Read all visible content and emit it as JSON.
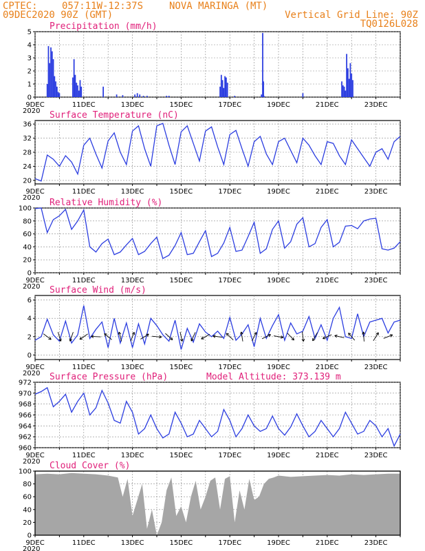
{
  "header": {
    "line1_left": "CPTEC:",
    "line1_coords": "057:11W-12:37S",
    "line1_location": "NOVA MARINGA (MT)",
    "line2_left": "09DEC2020 90Z (GMT)",
    "line2_right": "Vertical Grid Line: 90Z",
    "line3_right": "TQ0126L028"
  },
  "colors": {
    "header": "#e8801a",
    "title": "#e0207a",
    "line": "#2b3de0",
    "bar": "#2b3de0",
    "cloud": "#a6a6a6"
  },
  "x_axis": {
    "tick_labels": [
      "9DEC",
      "11DEC",
      "13DEC",
      "15DEC",
      "17DEC",
      "19DEC",
      "21DEC",
      "23DEC"
    ],
    "year_label": "2020",
    "day_start": 0,
    "day_end": 15
  },
  "model_altitude": "Model Altitude: 373.139 m",
  "chart_data": [
    {
      "id": "precip",
      "type": "bar",
      "title": "Precipitation (mm/h)",
      "ylim": [
        0,
        5
      ],
      "yticks": [
        0,
        1,
        2,
        3,
        4,
        5
      ],
      "x_days": [
        0.5,
        0.55,
        0.6,
        0.65,
        0.7,
        0.75,
        0.8,
        0.85,
        0.9,
        0.95,
        1.0,
        1.55,
        1.6,
        1.65,
        1.7,
        1.75,
        1.8,
        1.85,
        1.9,
        2.8,
        3.35,
        3.6,
        4.1,
        4.2,
        4.3,
        4.45,
        4.6,
        5.4,
        5.5,
        7.6,
        7.65,
        7.7,
        7.75,
        7.8,
        7.85,
        7.9,
        8.2,
        9.3,
        9.35,
        9.38,
        9.4,
        11.0,
        12.6,
        12.65,
        12.7,
        12.75,
        12.8,
        12.85,
        12.9,
        12.95,
        13.0,
        13.05
      ],
      "values": [
        1.0,
        3.9,
        2.6,
        3.8,
        3.5,
        2.9,
        1.6,
        1.2,
        0.8,
        0.4,
        0.3,
        1.5,
        2.9,
        1.7,
        1.1,
        0.9,
        0.5,
        1.3,
        0.8,
        0.8,
        0.2,
        0.15,
        0.2,
        0.3,
        0.2,
        0.1,
        0.1,
        0.1,
        0.1,
        0.8,
        1.7,
        1.3,
        0.7,
        1.6,
        1.5,
        1.1,
        0.1,
        0.2,
        4.9,
        1.2,
        0.1,
        0.3,
        1.2,
        0.9,
        0.8,
        0.5,
        3.3,
        2.2,
        1.4,
        2.6,
        1.8,
        1.3
      ]
    },
    {
      "id": "temp",
      "type": "line",
      "title": "Surface Temperature (nC)",
      "ylim": [
        19,
        37
      ],
      "yticks": [
        20,
        24,
        28,
        32,
        36
      ],
      "x_days": [
        0,
        0.25,
        0.5,
        0.75,
        1,
        1.25,
        1.5,
        1.75,
        2,
        2.25,
        2.5,
        2.75,
        3,
        3.25,
        3.5,
        3.75,
        4,
        4.25,
        4.5,
        4.75,
        5,
        5.25,
        5.5,
        5.75,
        6,
        6.25,
        6.5,
        6.75,
        7,
        7.25,
        7.5,
        7.75,
        8,
        8.25,
        8.5,
        8.75,
        9,
        9.25,
        9.5,
        9.75,
        10,
        10.25,
        10.5,
        10.75,
        11,
        11.25,
        11.5,
        11.75,
        12,
        12.25,
        12.5,
        12.75,
        13,
        13.25,
        13.5,
        13.75,
        14,
        14.25,
        14.5,
        14.75,
        15
      ],
      "values": [
        20.5,
        19.8,
        27.2,
        26.0,
        24.0,
        27.0,
        25.2,
        21.8,
        30.0,
        32.0,
        27.5,
        23.5,
        31.2,
        33.5,
        28.0,
        24.5,
        34.0,
        35.5,
        29.0,
        24.0,
        35.5,
        36.2,
        30.0,
        24.5,
        33.8,
        35.5,
        30.5,
        25.5,
        34.0,
        35.2,
        29.5,
        24.5,
        33.0,
        34.2,
        29.0,
        24.0,
        31.0,
        32.5,
        27.5,
        24.5,
        31.0,
        32.0,
        28.5,
        25.0,
        32.0,
        30.0,
        27.0,
        24.5,
        31.0,
        30.5,
        27.0,
        24.5,
        31.5,
        29.0,
        26.5,
        24.0,
        28.0,
        29.0,
        26.0,
        31.0,
        32.5
      ]
    },
    {
      "id": "rh",
      "type": "line",
      "title": "Relative Humidity (%)",
      "ylim": [
        0,
        100
      ],
      "yticks": [
        0,
        20,
        40,
        60,
        80,
        100
      ],
      "x_days": [
        0,
        0.25,
        0.5,
        0.75,
        1,
        1.25,
        1.5,
        1.75,
        2,
        2.25,
        2.5,
        2.75,
        3,
        3.25,
        3.5,
        3.75,
        4,
        4.25,
        4.5,
        4.75,
        5,
        5.25,
        5.5,
        5.75,
        6,
        6.25,
        6.5,
        6.75,
        7,
        7.25,
        7.5,
        7.75,
        8,
        8.25,
        8.5,
        8.75,
        9,
        9.25,
        9.5,
        9.75,
        10,
        10.25,
        10.5,
        10.75,
        11,
        11.25,
        11.5,
        11.75,
        12,
        12.25,
        12.5,
        12.75,
        13,
        13.25,
        13.5,
        13.75,
        14,
        14.25,
        14.5,
        14.75,
        15
      ],
      "values": [
        99,
        100,
        62,
        82,
        88,
        98,
        67,
        80,
        97,
        40,
        32,
        45,
        52,
        28,
        32,
        43,
        53,
        28,
        33,
        45,
        55,
        22,
        27,
        42,
        62,
        28,
        30,
        48,
        65,
        25,
        30,
        46,
        70,
        33,
        35,
        56,
        78,
        30,
        37,
        67,
        80,
        38,
        48,
        75,
        85,
        40,
        45,
        70,
        82,
        40,
        47,
        72,
        73,
        68,
        80,
        83,
        84,
        37,
        35,
        38,
        48
      ]
    },
    {
      "id": "wind",
      "type": "line",
      "title": "Surface Wind (m/s)",
      "ylim": [
        -0.5,
        6.5
      ],
      "yticks": [
        0,
        2,
        4,
        6
      ],
      "x_days": [
        0,
        0.25,
        0.5,
        0.75,
        1,
        1.25,
        1.5,
        1.75,
        2,
        2.25,
        2.5,
        2.75,
        3,
        3.25,
        3.5,
        3.75,
        4,
        4.25,
        4.5,
        4.75,
        5,
        5.25,
        5.5,
        5.75,
        6,
        6.25,
        6.5,
        6.75,
        7,
        7.25,
        7.5,
        7.75,
        8,
        8.25,
        8.5,
        8.75,
        9,
        9.25,
        9.5,
        9.75,
        10,
        10.25,
        10.5,
        10.75,
        11,
        11.25,
        11.5,
        11.75,
        12,
        12.25,
        12.5,
        12.75,
        13,
        13.25,
        13.5,
        13.75,
        14,
        14.25,
        14.5,
        14.75,
        15
      ],
      "values": [
        1.6,
        2.0,
        3.9,
        2.2,
        1.5,
        3.7,
        1.3,
        2.2,
        5.4,
        1.8,
        2.8,
        3.6,
        0.8,
        4.0,
        1.3,
        3.5,
        0.8,
        3.4,
        1.2,
        4.0,
        3.2,
        2.2,
        1.5,
        3.8,
        0.6,
        2.9,
        1.4,
        3.4,
        2.5,
        2.0,
        2.6,
        1.8,
        4.1,
        1.6,
        2.3,
        3.3,
        0.9,
        4.0,
        1.8,
        3.2,
        4.4,
        1.6,
        3.5,
        2.3,
        2.6,
        4.2,
        1.8,
        3.3,
        1.6,
        4.0,
        5.2,
        2.0,
        1.8,
        4.5,
        2.0,
        3.6,
        3.8,
        4.0,
        2.4,
        3.6,
        3.8
      ]
    },
    {
      "id": "pressure",
      "type": "line",
      "title": "Surface Pressure (hPa)",
      "ylim": [
        960,
        972
      ],
      "yticks": [
        960,
        962,
        964,
        966,
        968,
        970,
        972
      ],
      "x_days": [
        0,
        0.25,
        0.5,
        0.75,
        1,
        1.25,
        1.5,
        1.75,
        2,
        2.25,
        2.5,
        2.75,
        3,
        3.25,
        3.5,
        3.75,
        4,
        4.25,
        4.5,
        4.75,
        5,
        5.25,
        5.5,
        5.75,
        6,
        6.25,
        6.5,
        6.75,
        7,
        7.25,
        7.5,
        7.75,
        8,
        8.25,
        8.5,
        8.75,
        9,
        9.25,
        9.5,
        9.75,
        10,
        10.25,
        10.5,
        10.75,
        11,
        11.25,
        11.5,
        11.75,
        12,
        12.25,
        12.5,
        12.75,
        13,
        13.25,
        13.5,
        13.75,
        14,
        14.25,
        14.5,
        14.75,
        15
      ],
      "values": [
        969.8,
        970.3,
        971.0,
        967.5,
        968.5,
        969.8,
        966.5,
        968.5,
        970.0,
        966.0,
        967.3,
        970.5,
        968.2,
        965.0,
        964.5,
        968.5,
        966.5,
        962.5,
        963.5,
        966.0,
        963.5,
        961.8,
        962.5,
        966.5,
        964.5,
        962.0,
        962.5,
        965.0,
        963.5,
        962.0,
        963.0,
        967.0,
        965.0,
        962.0,
        963.5,
        966.0,
        964.0,
        963.0,
        963.5,
        965.8,
        963.5,
        962.3,
        963.8,
        966.2,
        964.0,
        962.0,
        963.0,
        965.0,
        963.5,
        962.0,
        963.5,
        966.5,
        964.5,
        962.5,
        963.0,
        965.0,
        964.0,
        962.0,
        963.5,
        960.3,
        962.5
      ]
    },
    {
      "id": "cloud",
      "type": "area",
      "title": "Cloud Cover (%)",
      "ylim": [
        0,
        100
      ],
      "yticks": [
        0,
        20,
        40,
        60,
        80,
        100
      ],
      "x_days": [
        0,
        0.5,
        1,
        1.5,
        2,
        2.5,
        3,
        3.4,
        3.6,
        3.8,
        4,
        4.2,
        4.4,
        4.6,
        4.8,
        5,
        5.2,
        5.4,
        5.6,
        5.8,
        6,
        6.2,
        6.4,
        6.6,
        6.8,
        7,
        7.2,
        7.4,
        7.6,
        7.8,
        8,
        8.2,
        8.4,
        8.6,
        8.8,
        9,
        9.2,
        9.4,
        9.6,
        9.8,
        10,
        10.5,
        11,
        11.5,
        12,
        12.5,
        13,
        13.5,
        14,
        14.5,
        15
      ],
      "values": [
        95,
        96,
        95,
        97,
        96,
        95,
        93,
        90,
        60,
        88,
        30,
        55,
        80,
        10,
        40,
        0,
        20,
        70,
        90,
        30,
        45,
        20,
        60,
        85,
        40,
        60,
        85,
        90,
        40,
        88,
        92,
        20,
        70,
        40,
        88,
        55,
        60,
        80,
        88,
        90,
        93,
        91,
        92,
        93,
        94,
        93,
        95,
        94,
        95,
        96,
        96
      ]
    }
  ]
}
